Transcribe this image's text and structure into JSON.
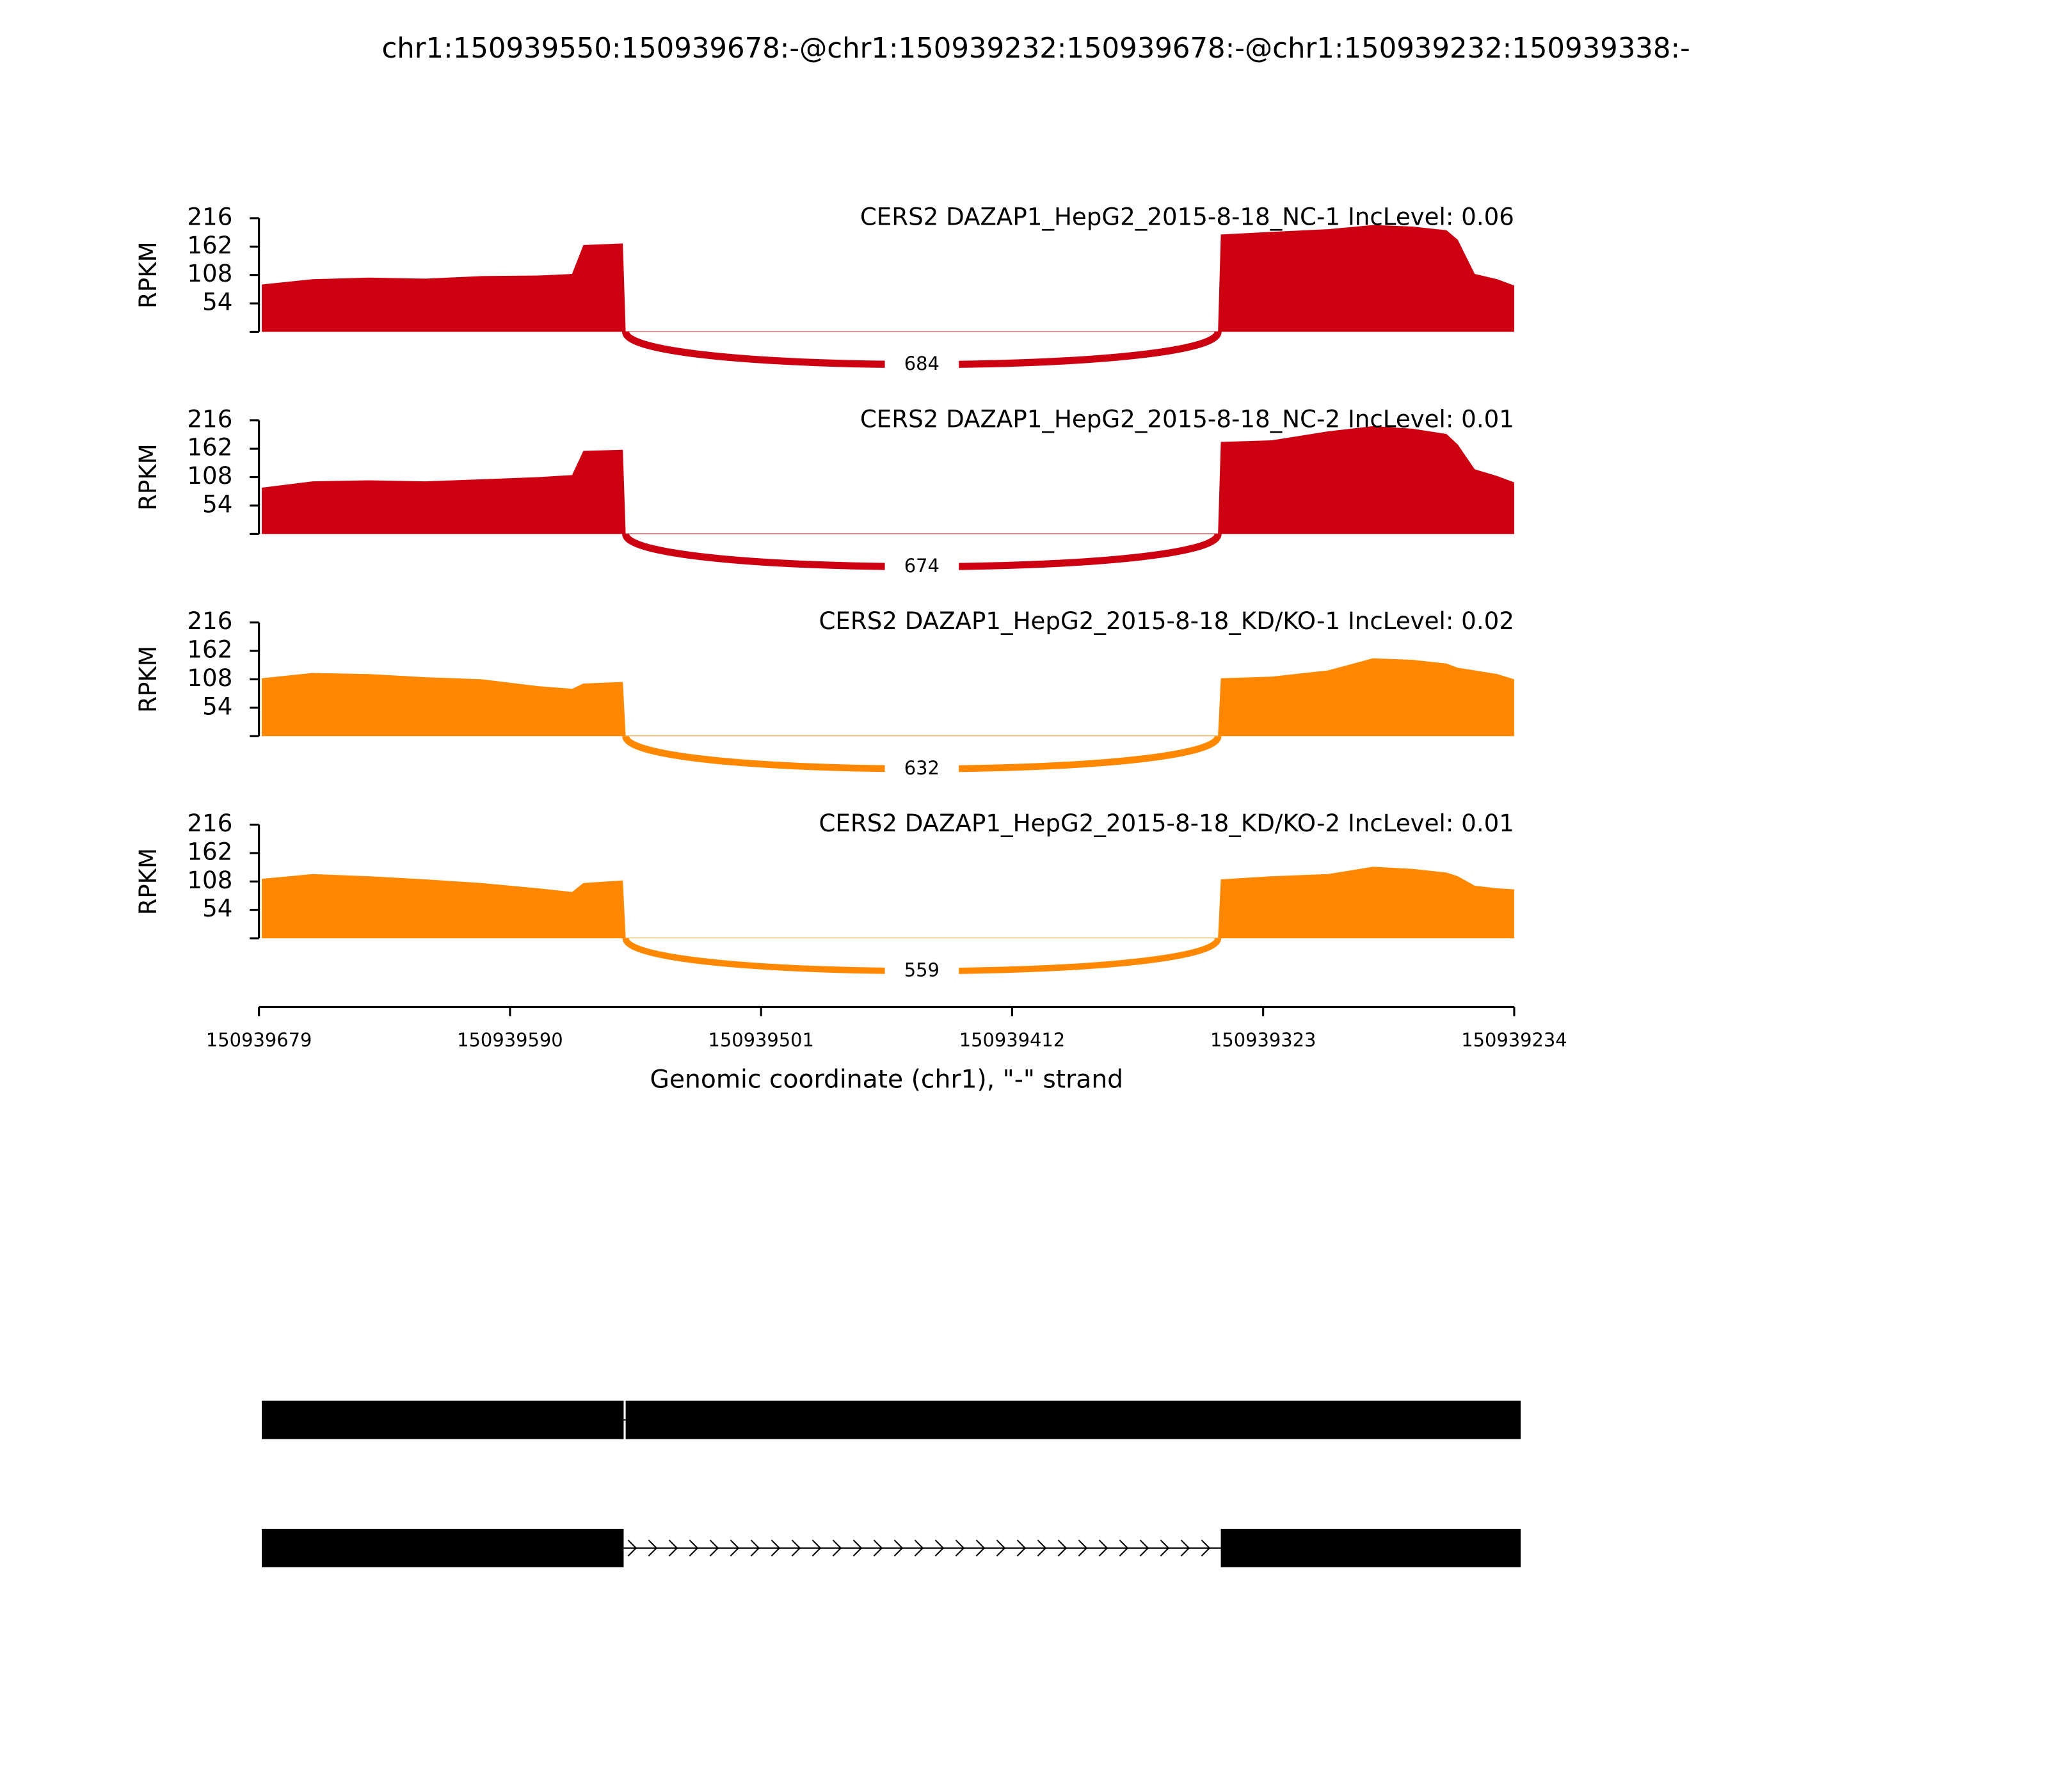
{
  "title": "chr1:150939550:150939678:-@chr1:150939232:150939678:-@chr1:150939232:150939338:-",
  "chart_data": [
    {
      "type": "area",
      "title": "CERS2 DAZAP1_HepG2_2015-8-18_NC-1 IncLevel: 0.06",
      "color": "#cc0011",
      "ylabel": "RPKM",
      "xlim": [
        150939679,
        150939234
      ],
      "ylim": [
        0,
        216
      ],
      "yticks": [
        54,
        108,
        162,
        216
      ],
      "x": [
        150939678,
        150939660,
        150939640,
        150939620,
        150939600,
        150939580,
        150939568,
        150939564,
        150939550,
        150939549,
        150939339,
        150939338,
        150939320,
        150939300,
        150939284,
        150939270,
        150939258,
        150939254,
        150939248,
        150939240,
        150939234
      ],
      "values": [
        90,
        100,
        103,
        101,
        106,
        107,
        110,
        165,
        168,
        1,
        1,
        185,
        190,
        195,
        203,
        200,
        193,
        175,
        110,
        100,
        88
      ],
      "junction": [
        150939549,
        150939339
      ],
      "junction_count": 684
    },
    {
      "type": "area",
      "title": "CERS2 DAZAP1_HepG2_2015-8-18_NC-2 IncLevel: 0.01",
      "color": "#cc0011",
      "ylabel": "RPKM",
      "xlim": [
        150939679,
        150939234
      ],
      "ylim": [
        0,
        216
      ],
      "yticks": [
        54,
        108,
        162,
        216
      ],
      "x": [
        150939678,
        150939660,
        150939640,
        150939620,
        150939600,
        150939580,
        150939568,
        150939564,
        150939550,
        150939549,
        150939339,
        150939338,
        150939320,
        150939300,
        150939284,
        150939270,
        150939258,
        150939254,
        150939248,
        150939240,
        150939234
      ],
      "values": [
        88,
        100,
        102,
        100,
        104,
        108,
        112,
        158,
        160,
        1,
        1,
        175,
        178,
        195,
        205,
        200,
        190,
        170,
        123,
        110,
        98
      ],
      "junction": [
        150939549,
        150939339
      ],
      "junction_count": 674
    },
    {
      "type": "area",
      "title": "CERS2 DAZAP1_HepG2_2015-8-18_KD/KO-1 IncLevel: 0.02",
      "color": "#ff8800",
      "ylabel": "RPKM",
      "xlim": [
        150939679,
        150939234
      ],
      "ylim": [
        0,
        216
      ],
      "yticks": [
        54,
        108,
        162,
        216
      ],
      "x": [
        150939678,
        150939660,
        150939640,
        150939620,
        150939600,
        150939580,
        150939568,
        150939564,
        150939550,
        150939549,
        150939339,
        150939338,
        150939320,
        150939300,
        150939284,
        150939270,
        150939258,
        150939254,
        150939248,
        150939240,
        150939234
      ],
      "values": [
        110,
        120,
        118,
        112,
        108,
        95,
        90,
        100,
        103,
        1,
        1,
        110,
        113,
        125,
        148,
        145,
        138,
        130,
        125,
        118,
        108
      ],
      "junction": [
        150939549,
        150939339
      ],
      "junction_count": 632
    },
    {
      "type": "area",
      "title": "CERS2 DAZAP1_HepG2_2015-8-18_KD/KO-2 IncLevel: 0.01",
      "color": "#ff8800",
      "ylabel": "RPKM",
      "xlim": [
        150939679,
        150939234
      ],
      "ylim": [
        0,
        216
      ],
      "yticks": [
        54,
        108,
        162,
        216
      ],
      "x": [
        150939678,
        150939660,
        150939640,
        150939620,
        150939600,
        150939580,
        150939568,
        150939564,
        150939550,
        150939549,
        150939339,
        150939338,
        150939320,
        150939300,
        150939284,
        150939270,
        150939258,
        150939254,
        150939248,
        150939240,
        150939234
      ],
      "values": [
        113,
        122,
        118,
        112,
        105,
        95,
        88,
        105,
        110,
        1,
        1,
        112,
        118,
        122,
        136,
        132,
        125,
        118,
        100,
        95,
        93
      ],
      "junction": [
        150939549,
        150939339
      ],
      "junction_count": 559,
      "xticks": [
        150939679,
        150939590,
        150939501,
        150939412,
        150939323,
        150939234
      ],
      "xlabel": "Genomic coordinate (chr1), \"-\" strand"
    },
    {
      "type": "gene_model",
      "color": "#000000",
      "xlim": [
        150939679,
        150939234
      ],
      "isoforms": [
        [
          [
            150939678,
            150939550
          ],
          [
            150939549,
            150939232
          ]
        ],
        [
          [
            150939678,
            150939550
          ],
          [
            150939338,
            150939232
          ]
        ]
      ]
    }
  ]
}
